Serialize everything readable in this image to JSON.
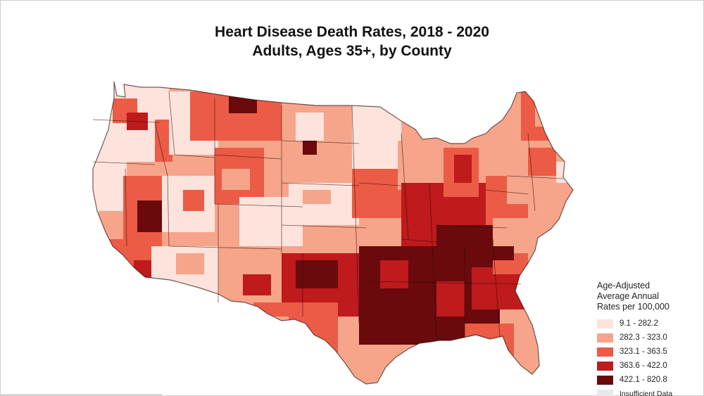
{
  "title_line1": "Heart Disease Death Rates, 2018 - 2020",
  "title_line2": "Adults, Ages 35+, by County",
  "legend": {
    "title_lines": [
      "Age-Adjusted",
      "Average Annual",
      "Rates per 100,000"
    ],
    "items": [
      {
        "label": "9.1 - 282.2",
        "color": "#fde3dc"
      },
      {
        "label": "282.3 - 323.0",
        "color": "#f6a58b"
      },
      {
        "label": "323.1 - 363.5",
        "color": "#ec5b45"
      },
      {
        "label": "363.6 - 422.0",
        "color": "#bf1a1c"
      },
      {
        "label": "422.1 - 820.8",
        "color": "#6a0a0c"
      },
      {
        "label": "Insufficient Data",
        "color": "#e8e8e8"
      }
    ]
  },
  "map_legend_classes": 5,
  "map_region": "contiguous-united-states"
}
